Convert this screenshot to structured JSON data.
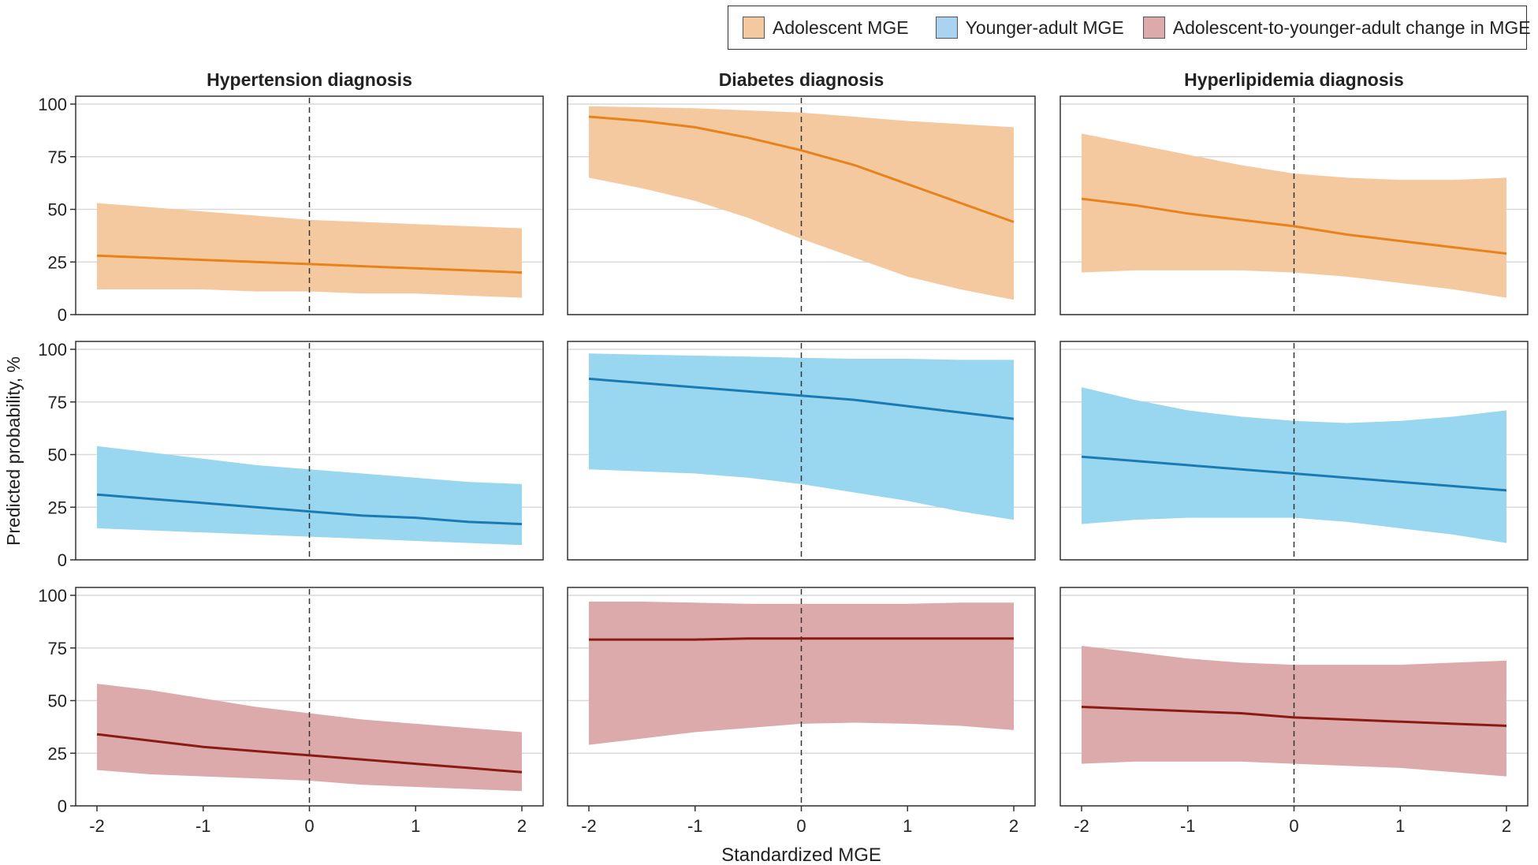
{
  "colors": {
    "adolescent_fill": "#f5c9a0",
    "adolescent_line": "#e8821c",
    "younger_fill": "#99d6f0",
    "younger_line": "#1a7ab5",
    "change_fill": "#dcaaaa",
    "change_line": "#8b1a12",
    "grid": "#d9d9d9",
    "axis": "#333333"
  },
  "legend": {
    "items": [
      {
        "label": "Adolescent MGE",
        "swatch": "#f5c9a0"
      },
      {
        "label": "Younger-adult MGE",
        "swatch": "#a9d3f0"
      },
      {
        "label": "Adolescent-to-younger-adult change in MGE",
        "swatch": "#dcaaaa"
      }
    ]
  },
  "chart_data": {
    "type": "line",
    "title": "",
    "xlabel": "Standardized MGE",
    "ylabel": "Predicted probability, %",
    "xlim": [
      -2,
      2
    ],
    "ylim": [
      0,
      100
    ],
    "xticks": [
      -2,
      -1,
      0,
      1,
      2
    ],
    "xtick_labels": [
      "-2",
      "-1",
      "0",
      "1",
      "2"
    ],
    "yticks": [
      0,
      25,
      50,
      75,
      100
    ],
    "ytick_labels": [
      "0",
      "25",
      "50",
      "75",
      "100"
    ],
    "reference_line_x": 0,
    "columns": [
      "Hypertension diagnosis",
      "Diabetes diagnosis",
      "Hyperlipidemia diagnosis"
    ],
    "rows": [
      {
        "name": "Adolescent MGE",
        "fill": "#f5c9a0",
        "line": "#e8821c"
      },
      {
        "name": "Younger-adult MGE",
        "fill": "#99d6f0",
        "line": "#1a7ab5"
      },
      {
        "name": "Adolescent-to-younger-adult change in MGE",
        "fill": "#dcaaaa",
        "line": "#8b1a12"
      }
    ],
    "x": [
      -2,
      -1.5,
      -1,
      -0.5,
      0,
      0.5,
      1,
      1.5,
      2
    ],
    "panels": [
      [
        {
          "mean": [
            28,
            27,
            26,
            25,
            24,
            23,
            22,
            21,
            20
          ],
          "upper": [
            53,
            51,
            49,
            47,
            45,
            44,
            43,
            42,
            41
          ],
          "lower": [
            12,
            12,
            12,
            11,
            11,
            10,
            10,
            9,
            8
          ]
        },
        {
          "mean": [
            94,
            92,
            89,
            84,
            78,
            71,
            62,
            53,
            44
          ],
          "upper": [
            99,
            98.5,
            98,
            97,
            96,
            94,
            92,
            90.5,
            89
          ],
          "lower": [
            65,
            60,
            54,
            46,
            36,
            27,
            18,
            12,
            7
          ]
        },
        {
          "mean": [
            55,
            52,
            48,
            45,
            42,
            38,
            35,
            32,
            29
          ],
          "upper": [
            86,
            81,
            76,
            71,
            67,
            65,
            64,
            64,
            65
          ],
          "lower": [
            20,
            21,
            21,
            21,
            20,
            18,
            15,
            12,
            8
          ]
        }
      ],
      [
        {
          "mean": [
            31,
            29,
            27,
            25,
            23,
            21,
            20,
            18,
            17
          ],
          "upper": [
            54,
            51,
            48,
            45,
            43,
            41,
            39,
            37,
            36
          ],
          "lower": [
            15,
            14,
            13,
            12,
            11,
            10,
            9,
            8,
            7
          ]
        },
        {
          "mean": [
            86,
            84,
            82,
            80,
            78,
            76,
            73,
            70,
            67
          ],
          "upper": [
            98,
            97.5,
            97,
            96.5,
            96,
            95.5,
            95.5,
            95,
            95
          ],
          "lower": [
            43,
            42,
            41,
            39,
            36,
            32,
            28,
            23,
            19
          ]
        },
        {
          "mean": [
            49,
            47,
            45,
            43,
            41,
            39,
            37,
            35,
            33
          ],
          "upper": [
            82,
            76,
            71,
            68,
            66,
            65,
            66,
            68,
            71
          ],
          "lower": [
            17,
            19,
            20,
            20,
            20,
            18,
            15,
            12,
            8
          ]
        }
      ],
      [
        {
          "mean": [
            34,
            31,
            28,
            26,
            24,
            22,
            20,
            18,
            16
          ],
          "upper": [
            58,
            55,
            51,
            47,
            44,
            41,
            39,
            37,
            35
          ],
          "lower": [
            17,
            15,
            14,
            13,
            12,
            10,
            9,
            8,
            7
          ]
        },
        {
          "mean": [
            79,
            79,
            79,
            79.5,
            79.5,
            79.5,
            79.5,
            79.5,
            79.5
          ],
          "upper": [
            97,
            97,
            96.5,
            96,
            96,
            96,
            96,
            96.5,
            96.5
          ],
          "lower": [
            29,
            32,
            35,
            37,
            39,
            39.5,
            39,
            38,
            36
          ]
        },
        {
          "mean": [
            47,
            46,
            45,
            44,
            42,
            41,
            40,
            39,
            38
          ],
          "upper": [
            76,
            73,
            70,
            68,
            67,
            67,
            67,
            68,
            69
          ],
          "lower": [
            20,
            21,
            21,
            21,
            20,
            19,
            18,
            16,
            14
          ]
        }
      ]
    ]
  }
}
